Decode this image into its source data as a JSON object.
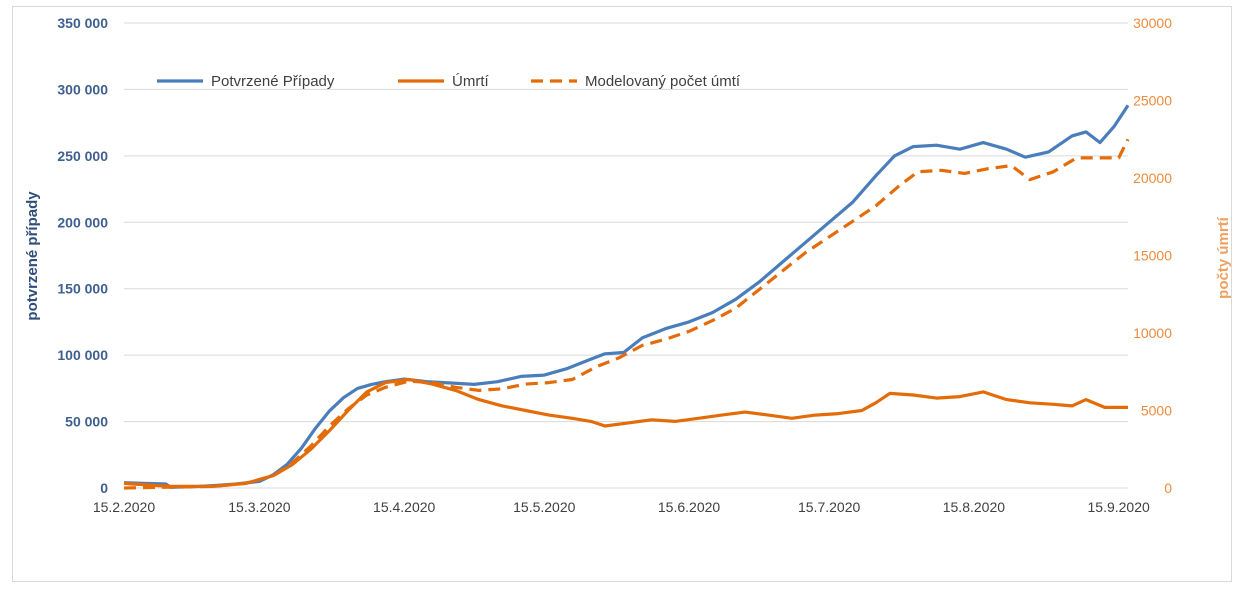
{
  "chart_data": {
    "type": "line",
    "title": "",
    "ylabel": "potvrzené případy",
    "y2label": "počty úmrtí",
    "xlabel": "",
    "x_ticks": [
      "15.2.2020",
      "15.3.2020",
      "15.4.2020",
      "15.5.2020",
      "15.6.2020",
      "15.7.2020",
      "15.8.2020",
      "15.9.2020"
    ],
    "y_ticks": [
      "0",
      "50 000",
      "100 000",
      "150 000",
      "200 000",
      "250 000",
      "300 000",
      "350 000"
    ],
    "y2_ticks": [
      "0",
      "5000",
      "10000",
      "15000",
      "20000",
      "25000",
      "30000"
    ],
    "ylim": [
      0,
      350000
    ],
    "y2lim": [
      0,
      30000
    ],
    "xlim": [
      "2020-02-15",
      "2020-09-17"
    ],
    "grid": true,
    "legend_position": "top-left",
    "series": [
      {
        "name": "Potvrzené Případy",
        "axis": "left",
        "color": "#4a7ebb",
        "style": "solid",
        "points": [
          [
            "2020-02-15",
            4000
          ],
          [
            "2020-02-24",
            3000
          ],
          [
            "2020-02-25",
            500
          ],
          [
            "2020-03-01",
            1000
          ],
          [
            "2020-03-06",
            2000
          ],
          [
            "2020-03-10",
            3000
          ],
          [
            "2020-03-15",
            5000
          ],
          [
            "2020-03-18",
            10000
          ],
          [
            "2020-03-21",
            18000
          ],
          [
            "2020-03-24",
            30000
          ],
          [
            "2020-03-27",
            45000
          ],
          [
            "2020-03-30",
            58000
          ],
          [
            "2020-04-02",
            68000
          ],
          [
            "2020-04-05",
            75000
          ],
          [
            "2020-04-08",
            78000
          ],
          [
            "2020-04-11",
            80000
          ],
          [
            "2020-04-15",
            82000
          ],
          [
            "2020-04-20",
            80000
          ],
          [
            "2020-04-25",
            79000
          ],
          [
            "2020-04-30",
            78000
          ],
          [
            "2020-05-05",
            80000
          ],
          [
            "2020-05-10",
            84000
          ],
          [
            "2020-05-15",
            85000
          ],
          [
            "2020-05-20",
            90000
          ],
          [
            "2020-05-25",
            97000
          ],
          [
            "2020-05-28",
            101000
          ],
          [
            "2020-06-01",
            102000
          ],
          [
            "2020-06-05",
            113000
          ],
          [
            "2020-06-10",
            120000
          ],
          [
            "2020-06-15",
            125000
          ],
          [
            "2020-06-20",
            132000
          ],
          [
            "2020-06-25",
            142000
          ],
          [
            "2020-06-30",
            155000
          ],
          [
            "2020-07-05",
            170000
          ],
          [
            "2020-07-10",
            185000
          ],
          [
            "2020-07-15",
            200000
          ],
          [
            "2020-07-20",
            215000
          ],
          [
            "2020-07-25",
            235000
          ],
          [
            "2020-07-29",
            250000
          ],
          [
            "2020-08-02",
            257000
          ],
          [
            "2020-08-07",
            258000
          ],
          [
            "2020-08-12",
            255000
          ],
          [
            "2020-08-17",
            260000
          ],
          [
            "2020-08-22",
            255000
          ],
          [
            "2020-08-26",
            249000
          ],
          [
            "2020-08-31",
            253000
          ],
          [
            "2020-09-05",
            265000
          ],
          [
            "2020-09-08",
            268000
          ],
          [
            "2020-09-11",
            260000
          ],
          [
            "2020-09-14",
            272000
          ],
          [
            "2020-09-17",
            288000
          ]
        ]
      },
      {
        "name": "Úmrtí",
        "axis": "right",
        "color": "#e36c09",
        "style": "solid",
        "points": [
          [
            "2020-02-15",
            300
          ],
          [
            "2020-02-25",
            100
          ],
          [
            "2020-03-05",
            100
          ],
          [
            "2020-03-12",
            300
          ],
          [
            "2020-03-18",
            800
          ],
          [
            "2020-03-22",
            1500
          ],
          [
            "2020-03-26",
            2500
          ],
          [
            "2020-03-30",
            3700
          ],
          [
            "2020-04-03",
            5000
          ],
          [
            "2020-04-07",
            6200
          ],
          [
            "2020-04-11",
            6800
          ],
          [
            "2020-04-16",
            7000
          ],
          [
            "2020-04-21",
            6700
          ],
          [
            "2020-04-26",
            6300
          ],
          [
            "2020-05-01",
            5700
          ],
          [
            "2020-05-06",
            5300
          ],
          [
            "2020-05-11",
            5000
          ],
          [
            "2020-05-16",
            4700
          ],
          [
            "2020-05-21",
            4500
          ],
          [
            "2020-05-25",
            4300
          ],
          [
            "2020-05-28",
            4000
          ],
          [
            "2020-06-02",
            4200
          ],
          [
            "2020-06-07",
            4400
          ],
          [
            "2020-06-12",
            4300
          ],
          [
            "2020-06-17",
            4500
          ],
          [
            "2020-06-22",
            4700
          ],
          [
            "2020-06-27",
            4900
          ],
          [
            "2020-07-02",
            4700
          ],
          [
            "2020-07-07",
            4500
          ],
          [
            "2020-07-12",
            4700
          ],
          [
            "2020-07-17",
            4800
          ],
          [
            "2020-07-22",
            5000
          ],
          [
            "2020-07-25",
            5500
          ],
          [
            "2020-07-28",
            6100
          ],
          [
            "2020-08-02",
            6000
          ],
          [
            "2020-08-07",
            5800
          ],
          [
            "2020-08-12",
            5900
          ],
          [
            "2020-08-17",
            6200
          ],
          [
            "2020-08-22",
            5700
          ],
          [
            "2020-08-27",
            5500
          ],
          [
            "2020-09-01",
            5400
          ],
          [
            "2020-09-05",
            5300
          ],
          [
            "2020-09-08",
            5700
          ],
          [
            "2020-09-12",
            5200
          ],
          [
            "2020-09-17",
            5200
          ]
        ]
      },
      {
        "name": "Modelovaný počet úmtí",
        "axis": "right",
        "color": "#e36c09",
        "style": "dashed",
        "points": [
          [
            "2020-02-15",
            0
          ],
          [
            "2020-03-05",
            100
          ],
          [
            "2020-03-12",
            300
          ],
          [
            "2020-03-18",
            800
          ],
          [
            "2020-03-22",
            1600
          ],
          [
            "2020-03-26",
            2700
          ],
          [
            "2020-03-30",
            4000
          ],
          [
            "2020-04-03",
            5100
          ],
          [
            "2020-04-07",
            6000
          ],
          [
            "2020-04-11",
            6500
          ],
          [
            "2020-04-16",
            6900
          ],
          [
            "2020-04-21",
            6800
          ],
          [
            "2020-04-26",
            6500
          ],
          [
            "2020-05-01",
            6300
          ],
          [
            "2020-05-06",
            6400
          ],
          [
            "2020-05-11",
            6700
          ],
          [
            "2020-05-16",
            6800
          ],
          [
            "2020-05-21",
            7000
          ],
          [
            "2020-05-26",
            7800
          ],
          [
            "2020-05-31",
            8400
          ],
          [
            "2020-06-05",
            9200
          ],
          [
            "2020-06-10",
            9600
          ],
          [
            "2020-06-15",
            10100
          ],
          [
            "2020-06-20",
            10800
          ],
          [
            "2020-06-25",
            11600
          ],
          [
            "2020-06-30",
            12800
          ],
          [
            "2020-07-05",
            14000
          ],
          [
            "2020-07-10",
            15200
          ],
          [
            "2020-07-15",
            16200
          ],
          [
            "2020-07-20",
            17200
          ],
          [
            "2020-07-25",
            18200
          ],
          [
            "2020-07-30",
            19500
          ],
          [
            "2020-08-03",
            20400
          ],
          [
            "2020-08-08",
            20500
          ],
          [
            "2020-08-13",
            20300
          ],
          [
            "2020-08-18",
            20600
          ],
          [
            "2020-08-23",
            20800
          ],
          [
            "2020-08-27",
            19900
          ],
          [
            "2020-09-01",
            20400
          ],
          [
            "2020-09-06",
            21300
          ],
          [
            "2020-09-10",
            21300
          ],
          [
            "2020-09-15",
            21300
          ],
          [
            "2020-09-17",
            22500
          ]
        ]
      }
    ]
  }
}
